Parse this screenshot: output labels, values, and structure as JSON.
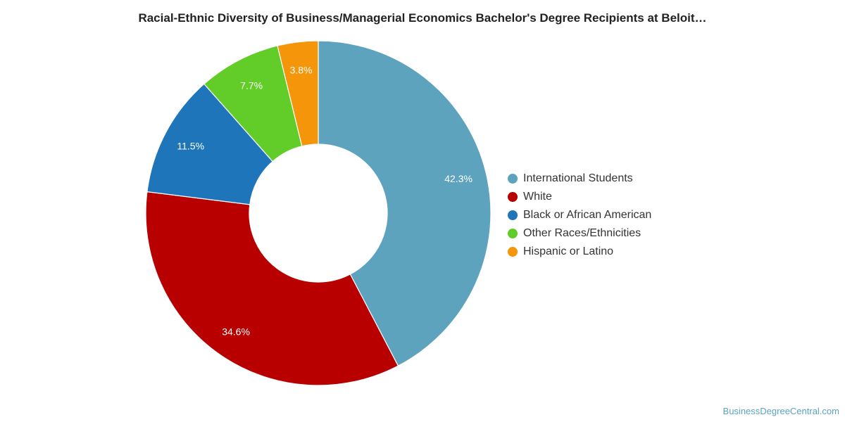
{
  "chart_data": {
    "type": "pie",
    "donut": true,
    "title": "Racial-Ethnic Diversity of Business/Managerial Economics Bachelor's Degree Recipients at Beloit…",
    "legend_position": "right",
    "slices": [
      {
        "name": "International Students",
        "value": 42.3,
        "label": "42.3%",
        "color": "#5ea3be"
      },
      {
        "name": "White",
        "value": 34.6,
        "label": "34.6%",
        "color": "#b80000"
      },
      {
        "name": "Black or African American",
        "value": 11.5,
        "label": "11.5%",
        "color": "#1f75ba"
      },
      {
        "name": "Other Races/Ethnicities",
        "value": 7.7,
        "label": "7.7%",
        "color": "#62cc29"
      },
      {
        "name": "Hispanic or Latino",
        "value": 3.8,
        "label": "3.8%",
        "color": "#f5960a"
      }
    ]
  },
  "legend": {
    "items": [
      {
        "label": "International Students",
        "color": "#5ea3be"
      },
      {
        "label": "White",
        "color": "#b80000"
      },
      {
        "label": "Black or African American",
        "color": "#1f75ba"
      },
      {
        "label": "Other Races/Ethnicities",
        "color": "#62cc29"
      },
      {
        "label": "Hispanic or Latino",
        "color": "#f5960a"
      }
    ]
  },
  "footer": {
    "source": "BusinessDegreeCentral.com"
  }
}
